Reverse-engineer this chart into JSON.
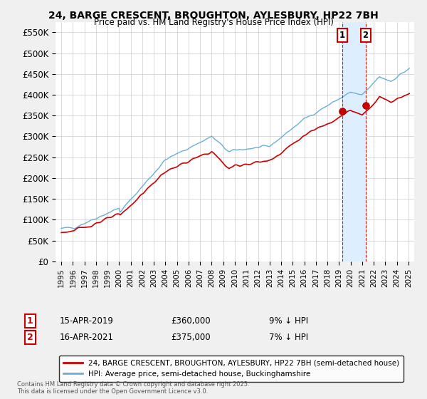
{
  "title": "24, BARGE CRESCENT, BROUGHTON, AYLESBURY, HP22 7BH",
  "subtitle": "Price paid vs. HM Land Registry's House Price Index (HPI)",
  "legend_label_red": "24, BARGE CRESCENT, BROUGHTON, AYLESBURY, HP22 7BH (semi-detached house)",
  "legend_label_blue": "HPI: Average price, semi-detached house, Buckinghamshire",
  "footnote": "Contains HM Land Registry data © Crown copyright and database right 2025.\nThis data is licensed under the Open Government Licence v3.0.",
  "sale1_date": "15-APR-2019",
  "sale1_price": "£360,000",
  "sale1_note": "9% ↓ HPI",
  "sale2_date": "16-APR-2021",
  "sale2_price": "£375,000",
  "sale2_note": "7% ↓ HPI",
  "sale1_x": 2019.29,
  "sale1_y": 360000,
  "sale2_x": 2021.29,
  "sale2_y": 375000,
  "ylim": [
    0,
    575000
  ],
  "xlim": [
    1994.5,
    2025.5
  ],
  "yticks": [
    0,
    50000,
    100000,
    150000,
    200000,
    250000,
    300000,
    350000,
    400000,
    450000,
    500000,
    550000
  ],
  "ytick_labels": [
    "£0",
    "£50K",
    "£100K",
    "£150K",
    "£200K",
    "£250K",
    "£300K",
    "£350K",
    "£400K",
    "£450K",
    "£500K",
    "£550K"
  ],
  "xticks": [
    1995,
    1996,
    1997,
    1998,
    1999,
    2000,
    2001,
    2002,
    2003,
    2004,
    2005,
    2006,
    2007,
    2008,
    2009,
    2010,
    2011,
    2012,
    2013,
    2014,
    2015,
    2016,
    2017,
    2018,
    2019,
    2020,
    2021,
    2022,
    2023,
    2024,
    2025
  ],
  "hpi_color": "#6baed6",
  "price_color": "#cc0000",
  "background_color": "#f0f0f0",
  "plot_bg_color": "#ffffff",
  "grid_color": "#cccccc",
  "shade_color": "#ddeeff",
  "vline_color": "#cc0000",
  "vline1_x": 2019.29,
  "vline2_x": 2021.29
}
